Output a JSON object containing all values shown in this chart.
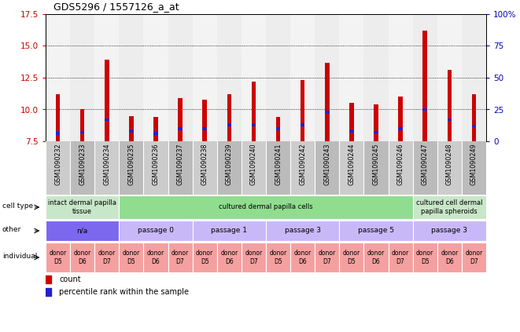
{
  "title": "GDS5296 / 1557126_a_at",
  "samples": [
    "GSM1090232",
    "GSM1090233",
    "GSM1090234",
    "GSM1090235",
    "GSM1090236",
    "GSM1090237",
    "GSM1090238",
    "GSM1090239",
    "GSM1090240",
    "GSM1090241",
    "GSM1090242",
    "GSM1090243",
    "GSM1090244",
    "GSM1090245",
    "GSM1090246",
    "GSM1090247",
    "GSM1090248",
    "GSM1090249"
  ],
  "count_values": [
    11.2,
    10.0,
    13.9,
    9.5,
    9.4,
    10.9,
    10.8,
    11.2,
    12.2,
    9.4,
    12.3,
    13.7,
    10.5,
    10.4,
    11.0,
    16.2,
    13.1,
    11.2
  ],
  "percentile_values": [
    8.1,
    8.2,
    9.2,
    8.3,
    8.1,
    8.5,
    8.5,
    8.8,
    8.8,
    8.5,
    8.8,
    9.8,
    8.3,
    8.2,
    8.5,
    10.0,
    9.2,
    8.7
  ],
  "bar_bottom": 7.5,
  "ylim_left": [
    7.5,
    17.5
  ],
  "ylim_right": [
    0,
    100
  ],
  "yticks_left": [
    7.5,
    10.0,
    12.5,
    15.0,
    17.5
  ],
  "yticks_right": [
    0,
    25,
    50,
    75,
    100
  ],
  "bar_color": "#cc0000",
  "percentile_color": "#2222cc",
  "cell_type_groups": [
    {
      "label": "intact dermal papilla\ntissue",
      "start": 0,
      "end": 3,
      "color": "#c8e6c8"
    },
    {
      "label": "cultured dermal papilla cells",
      "start": 3,
      "end": 15,
      "color": "#90dd90"
    },
    {
      "label": "cultured cell dermal\npapilla spheroids",
      "start": 15,
      "end": 18,
      "color": "#c8e6c8"
    }
  ],
  "other_groups": [
    {
      "label": "n/a",
      "start": 0,
      "end": 3,
      "color": "#7b68ee"
    },
    {
      "label": "passage 0",
      "start": 3,
      "end": 6,
      "color": "#c8b8f8"
    },
    {
      "label": "passage 1",
      "start": 6,
      "end": 9,
      "color": "#c8b8f8"
    },
    {
      "label": "passage 3",
      "start": 9,
      "end": 12,
      "color": "#c8b8f8"
    },
    {
      "label": "passage 5",
      "start": 12,
      "end": 15,
      "color": "#c8b8f8"
    },
    {
      "label": "passage 3",
      "start": 15,
      "end": 18,
      "color": "#c8b8f8"
    }
  ],
  "individual_groups": [
    {
      "label": "donor\nD5",
      "start": 0,
      "end": 1,
      "color": "#f4a0a0"
    },
    {
      "label": "donor\nD6",
      "start": 1,
      "end": 2,
      "color": "#f4a0a0"
    },
    {
      "label": "donor\nD7",
      "start": 2,
      "end": 3,
      "color": "#f4a0a0"
    },
    {
      "label": "donor\nD5",
      "start": 3,
      "end": 4,
      "color": "#f4a0a0"
    },
    {
      "label": "donor\nD6",
      "start": 4,
      "end": 5,
      "color": "#f4a0a0"
    },
    {
      "label": "donor\nD7",
      "start": 5,
      "end": 6,
      "color": "#f4a0a0"
    },
    {
      "label": "donor\nD5",
      "start": 6,
      "end": 7,
      "color": "#f4a0a0"
    },
    {
      "label": "donor\nD6",
      "start": 7,
      "end": 8,
      "color": "#f4a0a0"
    },
    {
      "label": "donor\nD7",
      "start": 8,
      "end": 9,
      "color": "#f4a0a0"
    },
    {
      "label": "donor\nD5",
      "start": 9,
      "end": 10,
      "color": "#f4a0a0"
    },
    {
      "label": "donor\nD6",
      "start": 10,
      "end": 11,
      "color": "#f4a0a0"
    },
    {
      "label": "donor\nD7",
      "start": 11,
      "end": 12,
      "color": "#f4a0a0"
    },
    {
      "label": "donor\nD5",
      "start": 12,
      "end": 13,
      "color": "#f4a0a0"
    },
    {
      "label": "donor\nD6",
      "start": 13,
      "end": 14,
      "color": "#f4a0a0"
    },
    {
      "label": "donor\nD7",
      "start": 14,
      "end": 15,
      "color": "#f4a0a0"
    },
    {
      "label": "donor\nD5",
      "start": 15,
      "end": 16,
      "color": "#f4a0a0"
    },
    {
      "label": "donor\nD6",
      "start": 16,
      "end": 17,
      "color": "#f4a0a0"
    },
    {
      "label": "donor\nD7",
      "start": 17,
      "end": 18,
      "color": "#f4a0a0"
    }
  ],
  "legend_count_color": "#cc0000",
  "legend_percentile_color": "#2222cc",
  "legend_count_label": "count",
  "legend_percentile_label": "percentile rank within the sample",
  "bg_color": "#ffffff",
  "tick_color_left": "#cc0000",
  "tick_color_right": "#0000cc",
  "col_bg_even": "#d0d0d0",
  "col_bg_odd": "#b8b8b8"
}
